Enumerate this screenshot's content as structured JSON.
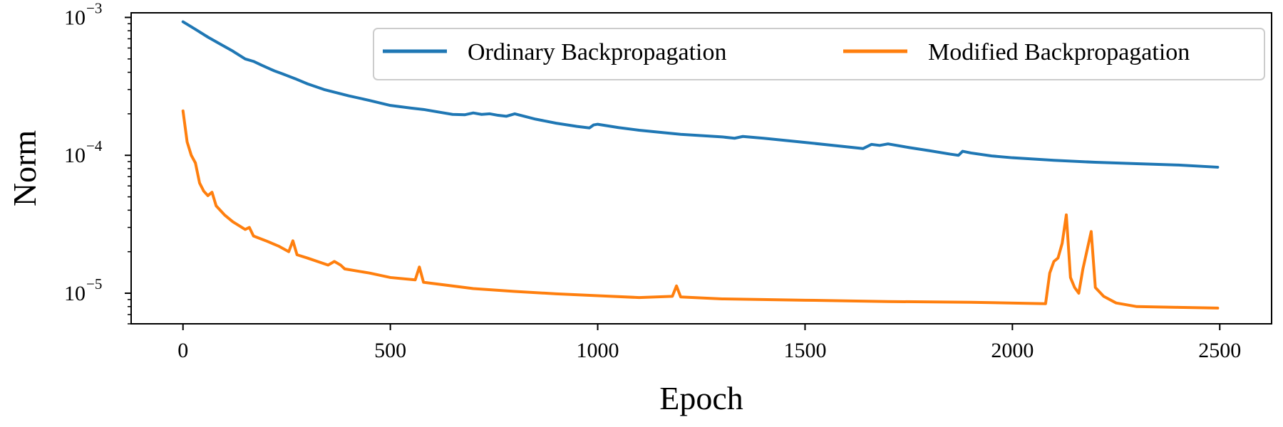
{
  "chart_data": {
    "type": "line",
    "xlabel": "Epoch",
    "ylabel": "Norm",
    "xlim": [
      -125,
      2625
    ],
    "ylim": [
      6e-06,
      0.00108
    ],
    "yscale": "log",
    "xticks": [
      {
        "value": 0,
        "label": "0"
      },
      {
        "value": 500,
        "label": "500"
      },
      {
        "value": 1000,
        "label": "1000"
      },
      {
        "value": 1500,
        "label": "1500"
      },
      {
        "value": 2000,
        "label": "2000"
      },
      {
        "value": 2500,
        "label": "2500"
      }
    ],
    "yticks": [
      {
        "value": 0.001,
        "base": "10",
        "exp": "−3"
      },
      {
        "value": 0.0001,
        "base": "10",
        "exp": "−4"
      },
      {
        "value": 1e-05,
        "base": "10",
        "exp": "−5"
      }
    ],
    "grid": false,
    "legend": "top-right",
    "series": [
      {
        "name": "Ordinary Backpropagation",
        "color": "#1f77b4",
        "x": [
          0,
          30,
          60,
          90,
          120,
          150,
          170,
          190,
          220,
          240,
          270,
          300,
          340,
          400,
          450,
          500,
          550,
          580,
          600,
          650,
          680,
          700,
          720,
          740,
          760,
          780,
          800,
          850,
          900,
          950,
          980,
          990,
          1000,
          1050,
          1100,
          1200,
          1300,
          1330,
          1350,
          1400,
          1500,
          1640,
          1660,
          1680,
          1700,
          1750,
          1800,
          1850,
          1870,
          1880,
          1900,
          1950,
          2000,
          2100,
          2200,
          2300,
          2400,
          2495
        ],
        "y": [
          0.00093,
          0.00082,
          0.00072,
          0.00064,
          0.00057,
          0.0005,
          0.00048,
          0.00045,
          0.00041,
          0.00039,
          0.00036,
          0.00033,
          0.0003,
          0.00027,
          0.00025,
          0.00023,
          0.00022,
          0.000215,
          0.00021,
          0.000198,
          0.000197,
          0.000203,
          0.000198,
          0.0002,
          0.000195,
          0.000192,
          0.0002,
          0.000183,
          0.000171,
          0.000162,
          0.000158,
          0.000166,
          0.000168,
          0.000159,
          0.000152,
          0.000142,
          0.000136,
          0.000133,
          0.000137,
          0.000133,
          0.000124,
          0.000112,
          0.00012,
          0.000118,
          0.000121,
          0.000114,
          0.000108,
          0.000102,
          0.0001,
          0.000107,
          0.000104,
          9.9e-05,
          9.6e-05,
          9.2e-05,
          8.9e-05,
          8.7e-05,
          8.5e-05,
          8.2e-05
        ]
      },
      {
        "name": "Modified Backpropagation",
        "color": "#ff7f0e",
        "x": [
          0,
          10,
          20,
          30,
          40,
          50,
          60,
          70,
          80,
          100,
          120,
          150,
          160,
          170,
          200,
          230,
          255,
          265,
          275,
          300,
          350,
          365,
          380,
          390,
          450,
          500,
          560,
          570,
          580,
          600,
          700,
          800,
          900,
          1000,
          1100,
          1180,
          1190,
          1200,
          1300,
          1500,
          1700,
          1900,
          2080,
          2090,
          2100,
          2110,
          2120,
          2130,
          2140,
          2150,
          2160,
          2170,
          2190,
          2200,
          2220,
          2250,
          2300,
          2400,
          2495
        ],
        "y": [
          0.00021,
          0.000125,
          0.0001,
          8.8e-05,
          6.3e-05,
          5.5e-05,
          5.1e-05,
          5.4e-05,
          4.3e-05,
          3.7e-05,
          3.3e-05,
          2.9e-05,
          3e-05,
          2.6e-05,
          2.4e-05,
          2.2e-05,
          2e-05,
          2.4e-05,
          1.9e-05,
          1.8e-05,
          1.6e-05,
          1.7e-05,
          1.6e-05,
          1.5e-05,
          1.4e-05,
          1.3e-05,
          1.25e-05,
          1.55e-05,
          1.2e-05,
          1.18e-05,
          1.08e-05,
          1.03e-05,
          9.9e-06,
          9.6e-06,
          9.3e-06,
          9.5e-06,
          1.13e-05,
          9.4e-06,
          9.1e-06,
          8.9e-06,
          8.7e-06,
          8.6e-06,
          8.4e-06,
          1.4e-05,
          1.7e-05,
          1.8e-05,
          2.3e-05,
          3.7e-05,
          1.3e-05,
          1.1e-05,
          1e-05,
          1.5e-05,
          2.8e-05,
          1.1e-05,
          9.5e-06,
          8.5e-06,
          8e-06,
          7.9e-06,
          7.8e-06
        ]
      }
    ]
  }
}
